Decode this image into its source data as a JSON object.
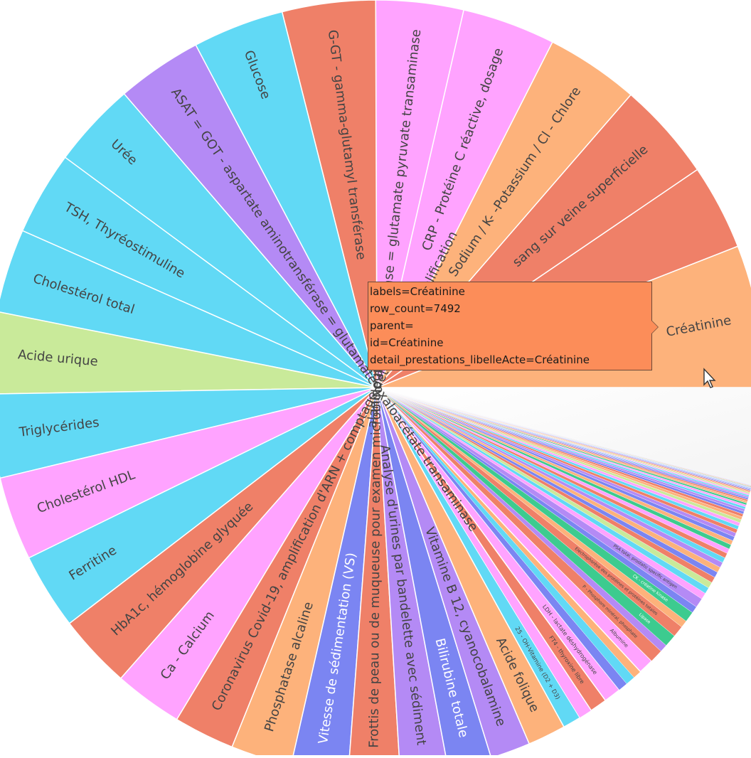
{
  "chart_data": {
    "type": "pie",
    "title": "",
    "segments": [
      {
        "label": "Créatinine",
        "value": 7492,
        "color": "#FDB27B"
      },
      {
        "label": "",
        "value": 4500,
        "color": "#EF8068"
      },
      {
        "label": "sang sur veine superficielle",
        "value": 5200,
        "color": "#EF8068"
      },
      {
        "label": "Sodium / K- -Potassium / Cl - Chlore",
        "value": 4900,
        "color": "#FDB27B"
      },
      {
        "label": "CRP - Protéine C réactive, dosage",
        "value": 4900,
        "color": "#FFA3FF"
      },
      {
        "label": "alanine aminotransférase = glutamate pyruvate transaminase",
        "value": 4600,
        "color": "#FFA3FF"
      },
      {
        "label": "G-GT - gamma-glutamyl transférase",
        "value": 4900,
        "color": "#EF8068"
      },
      {
        "label": "Glucose",
        "value": 4800,
        "color": "#61D9F5"
      },
      {
        "label": "ASAT = GOT - aspartate aminotransférase = glutamate oxaloacétate transaminase",
        "value": 4500,
        "color": "#B48AF5"
      },
      {
        "label": "Urée",
        "value": 4500,
        "color": "#61D9F5"
      },
      {
        "label": "TSH, Thyréostimuline",
        "value": 4400,
        "color": "#61D9F5"
      },
      {
        "label": "Cholestérol total",
        "value": 4400,
        "color": "#61D9F5"
      },
      {
        "label": "Acide urique",
        "value": 4300,
        "color": "#C9EA9A"
      },
      {
        "label": "Triglycérides",
        "value": 4400,
        "color": "#61D9F5"
      },
      {
        "label": "Cholestérol HDL",
        "value": 4400,
        "color": "#FFA3FF"
      },
      {
        "label": "Ferritine",
        "value": 4000,
        "color": "#61D9F5"
      },
      {
        "label": "HbA1c, hémoglobine glyquée",
        "value": 3900,
        "color": "#EF8068"
      },
      {
        "label": "Ca - Calcium",
        "value": 3600,
        "color": "#FFA3FF"
      },
      {
        "label": "Coronavirus Covid-19, amplification d'ARN + comptage détection de l'amplification",
        "value": 3200,
        "color": "#EF8068"
      },
      {
        "label": "Phosphatase alcaline",
        "value": 3200,
        "color": "#FDB27B"
      },
      {
        "label": "Vitesse de sédimentation (VS)",
        "value": 3000,
        "color": "#7B85F2"
      },
      {
        "label": "Frottis de peau ou de muqueuse pour examen microbiologique",
        "value": 2700,
        "color": "#EF8068"
      },
      {
        "label": "Analyse d'urines par bandelette avec sédiment",
        "value": 2500,
        "color": "#B48AF5"
      },
      {
        "label": "Bilirubine totale",
        "value": 2300,
        "color": "#7B85F2"
      },
      {
        "label": "Vitamine B 12, cyanocobalamine",
        "value": 2100,
        "color": "#B48AF5"
      },
      {
        "label": "Acide folique",
        "value": 2000,
        "color": "#FDB27B"
      },
      {
        "label": "25 - OH-Vitamine (D2 + D3)",
        "value": 950,
        "color": "#61D9F5"
      },
      {
        "label": "",
        "value": 700,
        "color": "#FFA3FF"
      },
      {
        "label": "FT4 - thyroxine libre",
        "value": 900,
        "color": "#EF8068"
      },
      {
        "label": "LDH - lactate déshydrogénase",
        "value": 900,
        "color": "#FFA3FF"
      },
      {
        "label": "",
        "value": 500,
        "color": "#7B85F2"
      },
      {
        "label": "",
        "value": 500,
        "color": "#61D9F5"
      },
      {
        "label": "",
        "value": 450,
        "color": "#FDB27B"
      },
      {
        "label": "Albumine",
        "value": 800,
        "color": "#FFA3FF"
      },
      {
        "label": "P - Phosphore minéral, phosphate",
        "value": 700,
        "color": "#EF8068"
      },
      {
        "label": "",
        "value": 400,
        "color": "#B48AF5"
      },
      {
        "label": "Lipase",
        "value": 650,
        "color": "#3DCB8F"
      },
      {
        "label": "Electrophorèse des protéines et protéines totales",
        "value": 600,
        "color": "#EF8068"
      },
      {
        "label": "",
        "value": 380,
        "color": "#FDB27B"
      },
      {
        "label": "CK - créatine kinase",
        "value": 550,
        "color": "#3DCB8F"
      },
      {
        "label": "",
        "value": 360,
        "color": "#7B85F2"
      },
      {
        "label": "PSA total, prostatic specific antigen",
        "value": 500,
        "color": "#B48AF5"
      },
      {
        "label": "",
        "value": 340,
        "color": "#FFA3FF"
      },
      {
        "label": "",
        "value": 330,
        "color": "#61D9F5"
      },
      {
        "label": "",
        "value": 320,
        "color": "#C9EA9A"
      },
      {
        "label": "",
        "value": 310,
        "color": "#EF8068"
      },
      {
        "label": "",
        "value": 300,
        "color": "#7B85F2"
      },
      {
        "label": "",
        "value": 290,
        "color": "#FDB27B"
      },
      {
        "label": "",
        "value": 280,
        "color": "#B48AF5"
      },
      {
        "label": "",
        "value": 270,
        "color": "#61D9F5"
      },
      {
        "label": "",
        "value": 260,
        "color": "#EF8068"
      },
      {
        "label": "",
        "value": 250,
        "color": "#FFA3FF"
      },
      {
        "label": "",
        "value": 240,
        "color": "#3DCB8F"
      },
      {
        "label": "",
        "value": 230,
        "color": "#FDB27B"
      },
      {
        "label": "",
        "value": 220,
        "color": "#7B85F2"
      },
      {
        "label": "",
        "value": 210,
        "color": "#B48AF5"
      },
      {
        "label": "",
        "value": 200,
        "color": "#EF8068"
      },
      {
        "label": "",
        "value": 190,
        "color": "#61D9F5"
      },
      {
        "label": "",
        "value": 180,
        "color": "#FFA3FF"
      },
      {
        "label": "",
        "value": 170,
        "color": "#C9EA9A"
      },
      {
        "label": "",
        "value": 160,
        "color": "#FDB27B"
      },
      {
        "label": "",
        "value": 150,
        "color": "#EF8068"
      },
      {
        "label": "",
        "value": 140,
        "color": "#7B85F2"
      },
      {
        "label": "",
        "value": 130,
        "color": "#B48AF5"
      },
      {
        "label": "",
        "value": 120,
        "color": "#61D9F5"
      },
      {
        "label": "",
        "value": 110,
        "color": "#FFA3FF"
      },
      {
        "label": "",
        "value": 100,
        "color": "#3DCB8F"
      },
      {
        "label": "",
        "value": 95,
        "color": "#FDB27B"
      },
      {
        "label": "",
        "value": 90,
        "color": "#EF8068"
      },
      {
        "label": "",
        "value": 85,
        "color": "#7B85F2"
      },
      {
        "label": "",
        "value": 80,
        "color": "#B48AF5"
      },
      {
        "label": "",
        "value": 75,
        "color": "#61D9F5"
      },
      {
        "label": "",
        "value": 70,
        "color": "#FFA3FF"
      },
      {
        "label": "",
        "value": 65,
        "color": "#C9EA9A"
      },
      {
        "label": "",
        "value": 60,
        "color": "#FDB27B"
      },
      {
        "label": "",
        "value": 55,
        "color": "#EF8068"
      },
      {
        "label": "",
        "value": 50,
        "color": "#7B85F2"
      },
      {
        "label": "",
        "value": 45,
        "color": "#B48AF5"
      },
      {
        "label": "",
        "value": 40,
        "color": "#61D9F5"
      },
      {
        "label": "",
        "value": 36,
        "color": "#FFA3FF"
      },
      {
        "label": "",
        "value": 32,
        "color": "#3DCB8F"
      },
      {
        "label": "",
        "value": 28,
        "color": "#FDB27B"
      },
      {
        "label": "",
        "value": 24,
        "color": "#EF8068"
      },
      {
        "label": "",
        "value": 20,
        "color": "#7B85F2"
      },
      {
        "label": "",
        "value": 16,
        "color": "#B48AF5"
      },
      {
        "label": "",
        "value": 12,
        "color": "#61D9F5"
      }
    ],
    "faded_remainder": 5100
  },
  "tooltip": {
    "line1": "labels=Créatinine",
    "line2": "row_count=7492",
    "line3": "parent=",
    "line4": "id=Créatinine",
    "line5": "detail_prestations_libelleActe=Créatinine"
  }
}
